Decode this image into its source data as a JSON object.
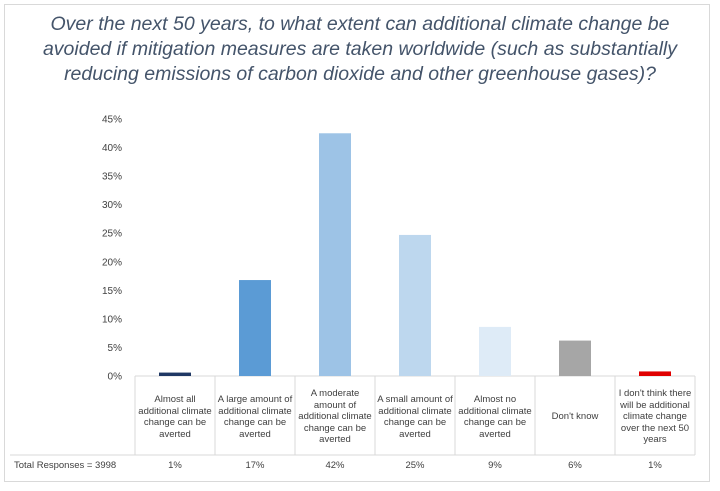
{
  "chart_data": {
    "type": "bar",
    "title": "Over the next 50 years, to what extent can additional climate change be avoided if mitigation measures are taken worldwide (such as substantially reducing emissions of carbon dioxide and other greenhouse gases)?",
    "categories": [
      "Almost all additional climate change can be averted",
      "A large amount of additional climate change can be averted",
      "A moderate amount of additional climate change can be averted",
      "A small amount of additional climate change can be averted",
      "Almost no additional climate change can be averted",
      "Don't know",
      "I don't think there will be additional climate change over the next 50 years"
    ],
    "values": [
      0.6,
      16.8,
      42.5,
      24.7,
      8.6,
      6.2,
      0.8
    ],
    "colors": [
      "#1f3864",
      "#5b9bd5",
      "#9dc3e6",
      "#bdd7ee",
      "#deebf7",
      "#a6a6a6",
      "#e00000"
    ],
    "yticks": [
      "0%",
      "5%",
      "10%",
      "15%",
      "20%",
      "25%",
      "30%",
      "35%",
      "40%",
      "45%"
    ],
    "ylim": [
      0,
      45
    ],
    "grid": false,
    "table": {
      "label": "Total Responses = 3998",
      "percentages": [
        "1%",
        "17%",
        "42%",
        "25%",
        "9%",
        "6%",
        "1%"
      ]
    }
  }
}
